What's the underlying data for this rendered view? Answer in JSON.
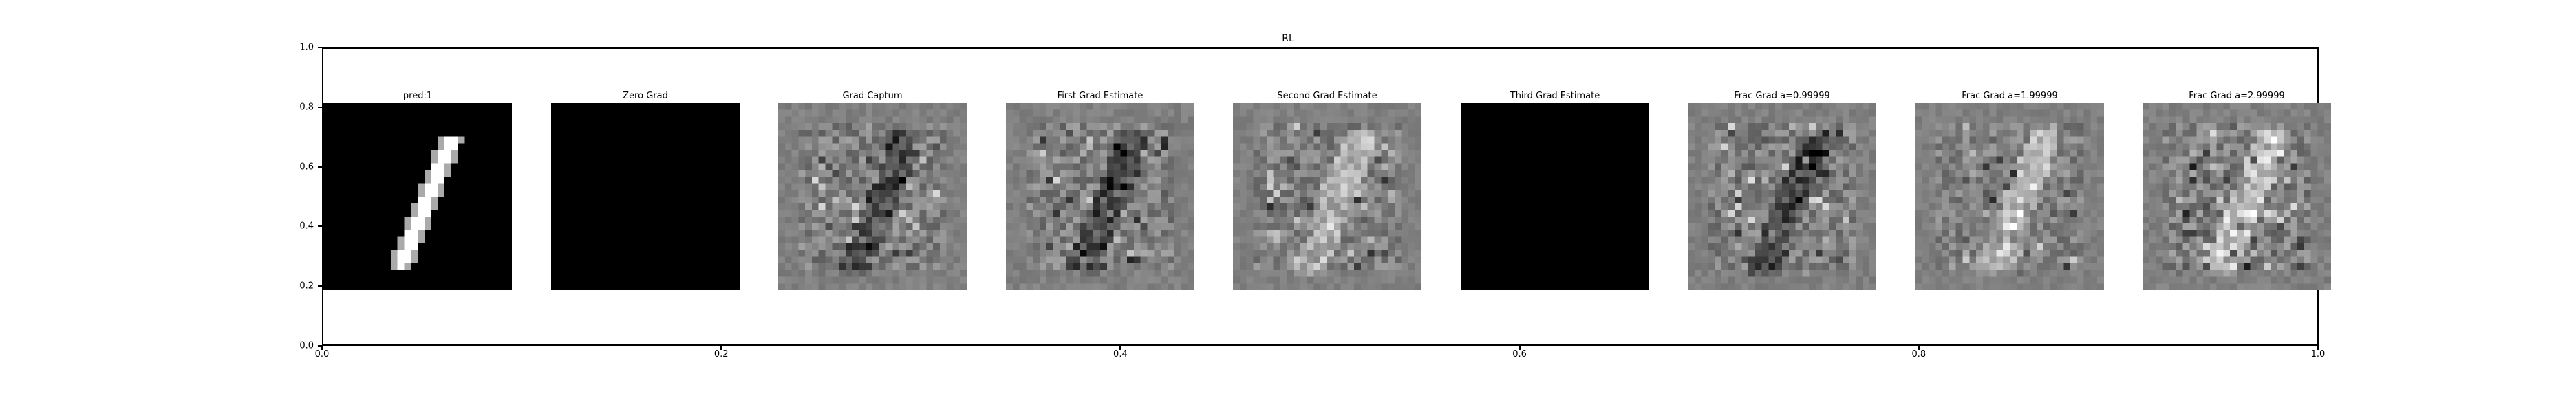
{
  "chart_data": {
    "type": "image-grid",
    "title": "RL",
    "xlim": [
      0.0,
      1.0
    ],
    "ylim": [
      0.0,
      1.0
    ],
    "xticks": [
      "0.0",
      "0.2",
      "0.4",
      "0.6",
      "0.8",
      "1.0"
    ],
    "yticks": [
      "0.0",
      "0.2",
      "0.4",
      "0.6",
      "0.8",
      "1.0"
    ],
    "panels": [
      {
        "title": "pred:1",
        "kind": "digit"
      },
      {
        "title": "Zero Grad",
        "kind": "black"
      },
      {
        "title": "Grad Captum",
        "kind": "noise-a"
      },
      {
        "title": "First Grad Estimate",
        "kind": "noise-a"
      },
      {
        "title": "Second Grad Estimate",
        "kind": "noise-b"
      },
      {
        "title": "Third Grad Estimate",
        "kind": "black"
      },
      {
        "title": "Frac Grad a=0.99999",
        "kind": "noise-a"
      },
      {
        "title": "Frac Grad a=1.99999",
        "kind": "noise-b"
      },
      {
        "title": "Frac Grad a=2.99999",
        "kind": "noise-c"
      }
    ],
    "colormap": "gray"
  }
}
